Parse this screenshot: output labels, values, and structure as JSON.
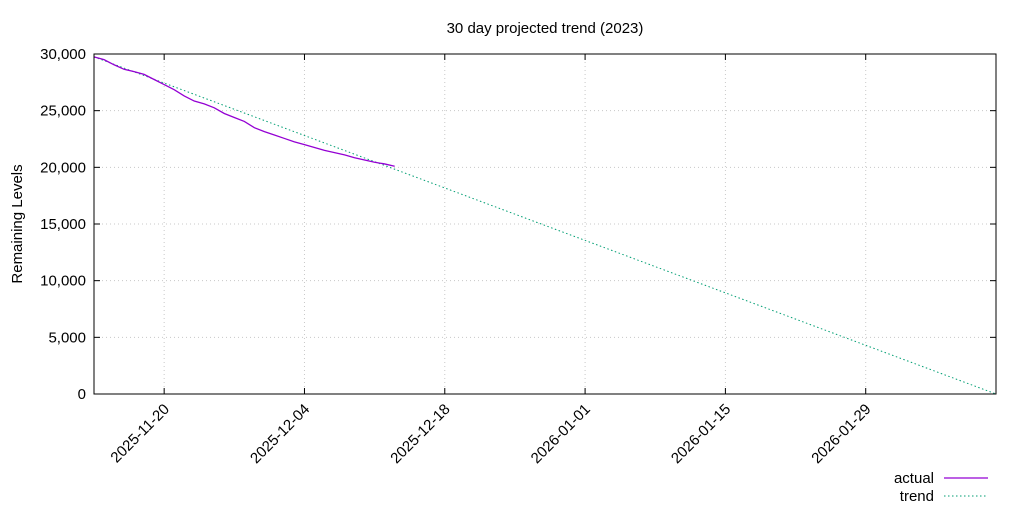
{
  "chart_data": {
    "type": "line",
    "title": "30 day projected trend (2023)",
    "xlabel": "",
    "ylabel": "Remaining Levels",
    "x_is_date": true,
    "xlim": [
      "2025-11-13",
      "2026-02-11"
    ],
    "ylim": [
      0,
      30000
    ],
    "x_ticks": [
      "2025-11-20",
      "2025-12-04",
      "2025-12-18",
      "2026-01-01",
      "2026-01-15",
      "2026-01-29"
    ],
    "y_ticks": [
      0,
      5000,
      10000,
      15000,
      20000,
      25000,
      30000
    ],
    "y_tick_labels": [
      "0",
      "5,000",
      "10,000",
      "15,000",
      "20,000",
      "25,000",
      "30,000"
    ],
    "grid": true,
    "legend_position": "bottom-right",
    "series": [
      {
        "name": "actual",
        "color": "#9400d3",
        "style": "solid",
        "x": [
          "2025-11-13",
          "2025-11-14",
          "2025-11-15",
          "2025-11-16",
          "2025-11-17",
          "2025-11-18",
          "2025-11-19",
          "2025-11-20",
          "2025-11-21",
          "2025-11-22",
          "2025-11-23",
          "2025-11-24",
          "2025-11-25",
          "2025-11-26",
          "2025-11-27",
          "2025-11-28",
          "2025-11-29",
          "2025-11-30",
          "2025-12-01",
          "2025-12-02",
          "2025-12-03",
          "2025-12-04",
          "2025-12-05",
          "2025-12-06",
          "2025-12-07",
          "2025-12-08",
          "2025-12-09",
          "2025-12-10",
          "2025-12-11",
          "2025-12-12",
          "2025-12-13"
        ],
        "y": [
          29750,
          29500,
          29050,
          28650,
          28450,
          28200,
          27750,
          27300,
          26850,
          26300,
          25850,
          25600,
          25250,
          24750,
          24400,
          24050,
          23500,
          23150,
          22850,
          22550,
          22250,
          22000,
          21750,
          21500,
          21300,
          21100,
          20850,
          20650,
          20450,
          20300,
          20100
        ]
      },
      {
        "name": "trend",
        "color": "#009e73",
        "style": "dotted",
        "x": [
          "2025-11-13",
          "2026-02-11"
        ],
        "y": [
          29750,
          0
        ]
      }
    ]
  }
}
